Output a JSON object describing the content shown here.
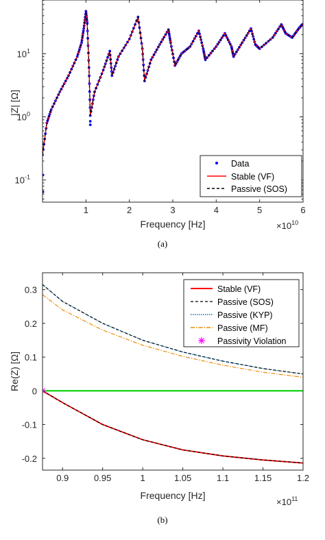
{
  "chart_data": [
    {
      "type": "line",
      "caption": "(a)",
      "xlabel": "Frequency [Hz]",
      "ylabel": "|Z| [Ω]",
      "x_multiplier": "×10",
      "x_multiplier_exp": "10",
      "xlim": [
        0,
        6
      ],
      "ylim_log10": [
        -1.35,
        1.85
      ],
      "yscale": "log",
      "x_ticks": [
        {
          "v": 1,
          "label": "1"
        },
        {
          "v": 2,
          "label": "2"
        },
        {
          "v": 3,
          "label": "3"
        },
        {
          "v": 4,
          "label": "4"
        },
        {
          "v": 5,
          "label": "5"
        },
        {
          "v": 6,
          "label": "6"
        }
      ],
      "y_ticks": [
        {
          "v": -1,
          "base": "10",
          "exp": "-1"
        },
        {
          "v": 0,
          "base": "10",
          "exp": "0"
        },
        {
          "v": 1,
          "base": "10",
          "exp": "1"
        }
      ],
      "legend": {
        "position": "bottom-right"
      },
      "series": [
        {
          "name": "Data",
          "style": "dots",
          "color": "#0000ff"
        },
        {
          "name": "Stable (VF)",
          "style": "solid",
          "color": "#ff0000"
        },
        {
          "name": "Passive (SOS)",
          "style": "dashed",
          "color": "#000000"
        }
      ],
      "points": [
        [
          0.0,
          0.25
        ],
        [
          0.1,
          0.8
        ],
        [
          0.2,
          1.3
        ],
        [
          0.4,
          2.5
        ],
        [
          0.6,
          4.5
        ],
        [
          0.8,
          9
        ],
        [
          0.9,
          15
        ],
        [
          0.95,
          25
        ],
        [
          1.0,
          47
        ],
        [
          1.03,
          30
        ],
        [
          1.07,
          6
        ],
        [
          1.1,
          1.05
        ],
        [
          1.2,
          2.5
        ],
        [
          1.4,
          5.5
        ],
        [
          1.55,
          11
        ],
        [
          1.6,
          4.5
        ],
        [
          1.75,
          9
        ],
        [
          2.0,
          17
        ],
        [
          2.2,
          38
        ],
        [
          2.3,
          12
        ],
        [
          2.35,
          3.7
        ],
        [
          2.5,
          8
        ],
        [
          2.7,
          14
        ],
        [
          2.9,
          24
        ],
        [
          2.95,
          15
        ],
        [
          3.05,
          6.5
        ],
        [
          3.2,
          10
        ],
        [
          3.4,
          13
        ],
        [
          3.6,
          23
        ],
        [
          3.7,
          12
        ],
        [
          3.75,
          8
        ],
        [
          4.0,
          13
        ],
        [
          4.2,
          21
        ],
        [
          4.35,
          13
        ],
        [
          4.4,
          9
        ],
        [
          4.6,
          15
        ],
        [
          4.8,
          25
        ],
        [
          4.9,
          14
        ],
        [
          5.0,
          12
        ],
        [
          5.3,
          18
        ],
        [
          5.5,
          29
        ],
        [
          5.6,
          21
        ],
        [
          5.75,
          18
        ],
        [
          5.9,
          25
        ],
        [
          6.0,
          30
        ]
      ],
      "data_outliers": [
        [
          0.01,
          0.065
        ],
        [
          0.01,
          0.12
        ],
        [
          1.1,
          0.75
        ],
        [
          1.1,
          0.85
        ]
      ]
    },
    {
      "type": "line",
      "caption": "(b)",
      "xlabel": "Frequency [Hz]",
      "ylabel": "Re(Z) [Ω]",
      "x_multiplier": "×10",
      "x_multiplier_exp": "11",
      "xlim": [
        0.875,
        1.2
      ],
      "ylim": [
        -0.235,
        0.35
      ],
      "x_ticks": [
        {
          "v": 0.9,
          "label": "0.9"
        },
        {
          "v": 0.95,
          "label": "0.95"
        },
        {
          "v": 1.0,
          "label": "1"
        },
        {
          "v": 1.05,
          "label": "1.05"
        },
        {
          "v": 1.1,
          "label": "1.1"
        },
        {
          "v": 1.15,
          "label": "1.15"
        },
        {
          "v": 1.2,
          "label": "1.2"
        }
      ],
      "y_ticks": [
        {
          "v": -0.2,
          "label": "-0.2"
        },
        {
          "v": -0.1,
          "label": "-0.1"
        },
        {
          "v": 0,
          "label": "0"
        },
        {
          "v": 0.1,
          "label": "0.1"
        },
        {
          "v": 0.2,
          "label": "0.2"
        },
        {
          "v": 0.3,
          "label": "0.3"
        }
      ],
      "legend": {
        "position": "top-right"
      },
      "series": [
        {
          "name": "Stable (VF)",
          "style": "solid",
          "color": "#ff0000",
          "legend": true,
          "x": [
            0.875,
            0.9,
            0.95,
            1.0,
            1.05,
            1.1,
            1.15,
            1.2
          ],
          "y": [
            0.0,
            -0.035,
            -0.1,
            -0.145,
            -0.175,
            -0.193,
            -0.205,
            -0.214
          ]
        },
        {
          "name": "Passive (SOS)",
          "style": "dashed",
          "color": "#000000",
          "legend": true,
          "x": [
            0.875,
            0.9,
            0.95,
            1.0,
            1.05,
            1.1,
            1.15,
            1.2
          ],
          "y": [
            0.0,
            -0.035,
            -0.1,
            -0.145,
            -0.175,
            -0.193,
            -0.205,
            -0.214
          ]
        },
        {
          "name": "Passive (KYP)",
          "style": "dotted",
          "color": "#0072bd",
          "legend": true,
          "x": [
            0.875,
            0.9,
            0.95,
            1.0,
            1.05,
            1.1,
            1.15,
            1.2
          ],
          "y": [
            0.315,
            0.265,
            0.2,
            0.15,
            0.115,
            0.088,
            0.066,
            0.05
          ]
        },
        {
          "name": "Passive (SOS)",
          "style": "dashed",
          "color": "#000000",
          "legend": false,
          "x": [
            0.875,
            0.9,
            0.95,
            1.0,
            1.05,
            1.1,
            1.15,
            1.2
          ],
          "y": [
            0.315,
            0.265,
            0.2,
            0.15,
            0.115,
            0.088,
            0.066,
            0.05
          ]
        },
        {
          "name": "Passive (MF)",
          "style": "dashdot",
          "color": "#ed8a00",
          "legend": true,
          "x": [
            0.875,
            0.9,
            0.95,
            1.0,
            1.05,
            1.1,
            1.15,
            1.2
          ],
          "y": [
            0.285,
            0.24,
            0.18,
            0.135,
            0.102,
            0.076,
            0.055,
            0.04
          ]
        },
        {
          "name": "zero",
          "style": "solid",
          "color": "#00d000",
          "legend": false,
          "x": [
            0.875,
            1.2
          ],
          "y": [
            0,
            0
          ]
        },
        {
          "name": "Passivity Violation",
          "style": "marker",
          "color": "#ff00ff",
          "legend": true,
          "x": [
            0.875
          ],
          "y": [
            0
          ]
        }
      ]
    }
  ]
}
